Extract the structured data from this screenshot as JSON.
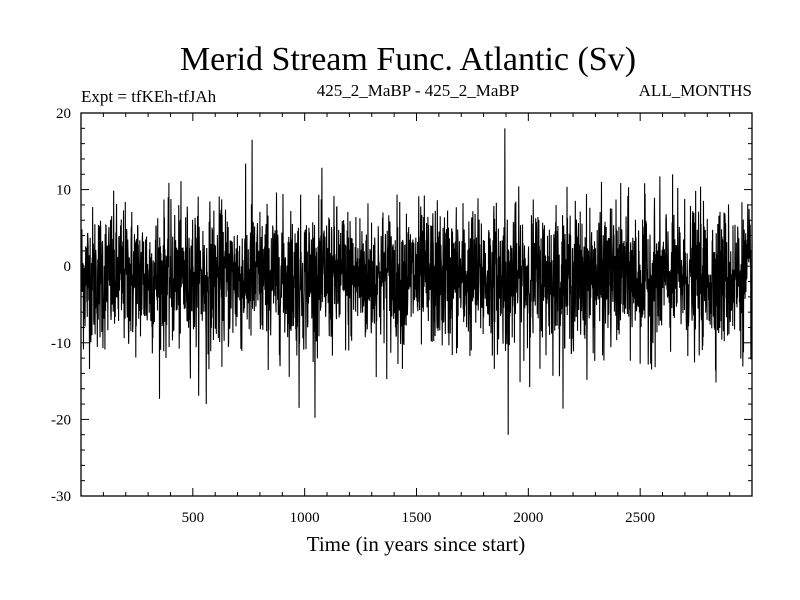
{
  "chart_data": {
    "type": "line",
    "title": "Merid Stream Func. Atlantic (Sv)",
    "subtitle_left": "Expt = tfKEh-tfJAh",
    "subtitle_center": "425_2_MaBP - 425_2_MaBP",
    "subtitle_right": "ALL_MONTHS",
    "xlabel": "Time (in years since start)",
    "ylabel": "",
    "xlim": [
      0,
      3000
    ],
    "ylim": [
      -30,
      20
    ],
    "x_ticks": [
      500,
      1000,
      1500,
      2000,
      2500
    ],
    "x_tick_labels": [
      "500",
      "1000",
      "1500",
      "2000",
      "2500"
    ],
    "y_ticks": [
      20,
      10,
      0,
      -10,
      -20,
      -30
    ],
    "y_tick_labels": [
      "20",
      "10",
      "0",
      "-10",
      "-20",
      "-30"
    ],
    "grid": false,
    "series": [
      {
        "color": "#000000",
        "x_start": 1,
        "x_step": 1,
        "n_points": 3000,
        "mean": -1.5,
        "typical_min": -12,
        "typical_max": 8,
        "notable_extremes": [
          {
            "x": 1895,
            "y": 18
          },
          {
            "x": 1910,
            "y": -22
          },
          {
            "x": 560,
            "y": -18
          },
          {
            "x": 975,
            "y": -18.5
          },
          {
            "x": 765,
            "y": 16.5
          }
        ]
      }
    ]
  }
}
